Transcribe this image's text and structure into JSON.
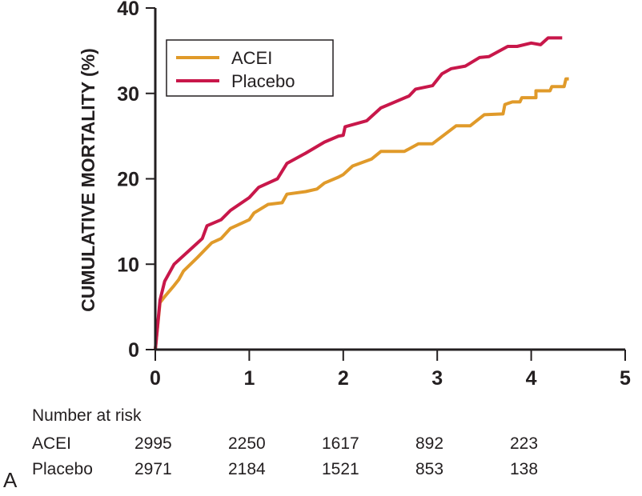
{
  "chart_data": {
    "type": "line",
    "title": "",
    "xlabel": "",
    "ylabel": "CUMULATIVE MORTALITY (%)",
    "xlim": [
      0,
      5
    ],
    "ylim": [
      0,
      40
    ],
    "x_ticks": [
      0,
      1,
      2,
      3,
      4,
      5
    ],
    "x_tick_labels": [
      "0",
      "1",
      "2",
      "3",
      "4",
      "5"
    ],
    "y_ticks": [
      0,
      10,
      20,
      30,
      40
    ],
    "y_tick_labels": [
      "0",
      "10",
      "20",
      "30",
      "40"
    ],
    "grid": false,
    "legend": {
      "position": "top-left",
      "entries": [
        "ACEI",
        "Placebo"
      ]
    },
    "series": [
      {
        "name": "ACEI",
        "color": "#e09a2a",
        "points": [
          [
            0,
            0
          ],
          [
            0.05,
            5.5
          ],
          [
            0.1,
            6.2
          ],
          [
            0.2,
            7.5
          ],
          [
            0.25,
            8.2
          ],
          [
            0.3,
            9.2
          ],
          [
            0.45,
            10.8
          ],
          [
            0.6,
            12.5
          ],
          [
            0.7,
            13
          ],
          [
            0.8,
            14.2
          ],
          [
            1.0,
            15.2
          ],
          [
            1.05,
            16
          ],
          [
            1.2,
            17
          ],
          [
            1.35,
            17.2
          ],
          [
            1.4,
            18.2
          ],
          [
            1.6,
            18.5
          ],
          [
            1.72,
            18.8
          ],
          [
            1.8,
            19.5
          ],
          [
            1.95,
            20.2
          ],
          [
            2.0,
            20.5
          ],
          [
            2.1,
            21.5
          ],
          [
            2.3,
            22.3
          ],
          [
            2.4,
            23.2
          ],
          [
            2.65,
            23.2
          ],
          [
            2.8,
            24.1
          ],
          [
            2.95,
            24.1
          ],
          [
            3.2,
            26.2
          ],
          [
            3.35,
            26.2
          ],
          [
            3.5,
            27.5
          ],
          [
            3.7,
            27.6
          ],
          [
            3.72,
            28.7
          ],
          [
            3.8,
            29
          ],
          [
            3.88,
            29
          ],
          [
            3.9,
            29.5
          ],
          [
            4.05,
            29.5
          ],
          [
            4.05,
            30.3
          ],
          [
            4.2,
            30.3
          ],
          [
            4.22,
            30.8
          ],
          [
            4.35,
            30.8
          ],
          [
            4.37,
            31.7
          ],
          [
            4.4,
            31.7
          ]
        ]
      },
      {
        "name": "Placebo",
        "color": "#c8174a",
        "points": [
          [
            0,
            0
          ],
          [
            0.05,
            5.8
          ],
          [
            0.1,
            8
          ],
          [
            0.2,
            10
          ],
          [
            0.4,
            12
          ],
          [
            0.5,
            13
          ],
          [
            0.55,
            14.5
          ],
          [
            0.7,
            15.2
          ],
          [
            0.8,
            16.3
          ],
          [
            1.0,
            17.8
          ],
          [
            1.1,
            19
          ],
          [
            1.3,
            20
          ],
          [
            1.4,
            21.8
          ],
          [
            1.6,
            23
          ],
          [
            1.8,
            24.3
          ],
          [
            1.95,
            25
          ],
          [
            2.0,
            25.1
          ],
          [
            2.02,
            26.1
          ],
          [
            2.25,
            26.8
          ],
          [
            2.4,
            28.3
          ],
          [
            2.7,
            29.7
          ],
          [
            2.77,
            30.5
          ],
          [
            2.95,
            30.9
          ],
          [
            3.05,
            32.3
          ],
          [
            3.15,
            32.9
          ],
          [
            3.3,
            33.2
          ],
          [
            3.45,
            34.2
          ],
          [
            3.55,
            34.3
          ],
          [
            3.75,
            35.5
          ],
          [
            3.85,
            35.5
          ],
          [
            4.0,
            35.9
          ],
          [
            4.1,
            35.7
          ],
          [
            4.18,
            36.5
          ],
          [
            4.33,
            36.5
          ]
        ]
      }
    ],
    "risk_table": {
      "title": "Number at risk",
      "rows": [
        {
          "label": "ACEI",
          "values": [
            "2995",
            "2250",
            "1617",
            "892",
            "223"
          ]
        },
        {
          "label": "Placebo",
          "values": [
            "2971",
            "2184",
            "1521",
            "853",
            "138"
          ]
        }
      ]
    },
    "panel_label": "A"
  }
}
